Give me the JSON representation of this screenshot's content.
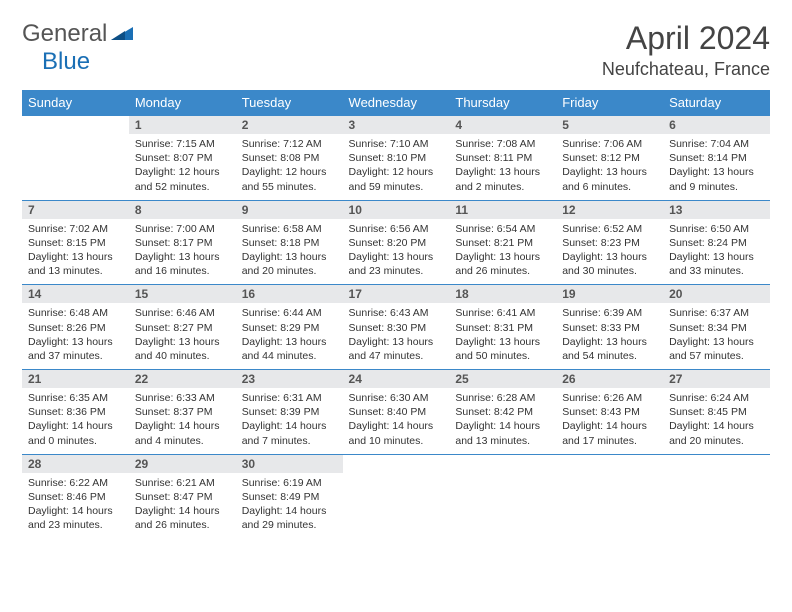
{
  "logo": {
    "general": "General",
    "blue": "Blue"
  },
  "title": "April 2024",
  "location": "Neufchateau, France",
  "colors": {
    "header_bg": "#3b88c9",
    "header_text": "#ffffff",
    "daynum_bg": "#e7e8ea",
    "rule": "#3b88c9",
    "logo_gray": "#555555",
    "logo_blue": "#1a6fb5"
  },
  "weekdays": [
    "Sunday",
    "Monday",
    "Tuesday",
    "Wednesday",
    "Thursday",
    "Friday",
    "Saturday"
  ],
  "weeks": [
    [
      null,
      {
        "n": "1",
        "sr": "Sunrise: 7:15 AM",
        "ss": "Sunset: 8:07 PM",
        "d1": "Daylight: 12 hours",
        "d2": "and 52 minutes."
      },
      {
        "n": "2",
        "sr": "Sunrise: 7:12 AM",
        "ss": "Sunset: 8:08 PM",
        "d1": "Daylight: 12 hours",
        "d2": "and 55 minutes."
      },
      {
        "n": "3",
        "sr": "Sunrise: 7:10 AM",
        "ss": "Sunset: 8:10 PM",
        "d1": "Daylight: 12 hours",
        "d2": "and 59 minutes."
      },
      {
        "n": "4",
        "sr": "Sunrise: 7:08 AM",
        "ss": "Sunset: 8:11 PM",
        "d1": "Daylight: 13 hours",
        "d2": "and 2 minutes."
      },
      {
        "n": "5",
        "sr": "Sunrise: 7:06 AM",
        "ss": "Sunset: 8:12 PM",
        "d1": "Daylight: 13 hours",
        "d2": "and 6 minutes."
      },
      {
        "n": "6",
        "sr": "Sunrise: 7:04 AM",
        "ss": "Sunset: 8:14 PM",
        "d1": "Daylight: 13 hours",
        "d2": "and 9 minutes."
      }
    ],
    [
      {
        "n": "7",
        "sr": "Sunrise: 7:02 AM",
        "ss": "Sunset: 8:15 PM",
        "d1": "Daylight: 13 hours",
        "d2": "and 13 minutes."
      },
      {
        "n": "8",
        "sr": "Sunrise: 7:00 AM",
        "ss": "Sunset: 8:17 PM",
        "d1": "Daylight: 13 hours",
        "d2": "and 16 minutes."
      },
      {
        "n": "9",
        "sr": "Sunrise: 6:58 AM",
        "ss": "Sunset: 8:18 PM",
        "d1": "Daylight: 13 hours",
        "d2": "and 20 minutes."
      },
      {
        "n": "10",
        "sr": "Sunrise: 6:56 AM",
        "ss": "Sunset: 8:20 PM",
        "d1": "Daylight: 13 hours",
        "d2": "and 23 minutes."
      },
      {
        "n": "11",
        "sr": "Sunrise: 6:54 AM",
        "ss": "Sunset: 8:21 PM",
        "d1": "Daylight: 13 hours",
        "d2": "and 26 minutes."
      },
      {
        "n": "12",
        "sr": "Sunrise: 6:52 AM",
        "ss": "Sunset: 8:23 PM",
        "d1": "Daylight: 13 hours",
        "d2": "and 30 minutes."
      },
      {
        "n": "13",
        "sr": "Sunrise: 6:50 AM",
        "ss": "Sunset: 8:24 PM",
        "d1": "Daylight: 13 hours",
        "d2": "and 33 minutes."
      }
    ],
    [
      {
        "n": "14",
        "sr": "Sunrise: 6:48 AM",
        "ss": "Sunset: 8:26 PM",
        "d1": "Daylight: 13 hours",
        "d2": "and 37 minutes."
      },
      {
        "n": "15",
        "sr": "Sunrise: 6:46 AM",
        "ss": "Sunset: 8:27 PM",
        "d1": "Daylight: 13 hours",
        "d2": "and 40 minutes."
      },
      {
        "n": "16",
        "sr": "Sunrise: 6:44 AM",
        "ss": "Sunset: 8:29 PM",
        "d1": "Daylight: 13 hours",
        "d2": "and 44 minutes."
      },
      {
        "n": "17",
        "sr": "Sunrise: 6:43 AM",
        "ss": "Sunset: 8:30 PM",
        "d1": "Daylight: 13 hours",
        "d2": "and 47 minutes."
      },
      {
        "n": "18",
        "sr": "Sunrise: 6:41 AM",
        "ss": "Sunset: 8:31 PM",
        "d1": "Daylight: 13 hours",
        "d2": "and 50 minutes."
      },
      {
        "n": "19",
        "sr": "Sunrise: 6:39 AM",
        "ss": "Sunset: 8:33 PM",
        "d1": "Daylight: 13 hours",
        "d2": "and 54 minutes."
      },
      {
        "n": "20",
        "sr": "Sunrise: 6:37 AM",
        "ss": "Sunset: 8:34 PM",
        "d1": "Daylight: 13 hours",
        "d2": "and 57 minutes."
      }
    ],
    [
      {
        "n": "21",
        "sr": "Sunrise: 6:35 AM",
        "ss": "Sunset: 8:36 PM",
        "d1": "Daylight: 14 hours",
        "d2": "and 0 minutes."
      },
      {
        "n": "22",
        "sr": "Sunrise: 6:33 AM",
        "ss": "Sunset: 8:37 PM",
        "d1": "Daylight: 14 hours",
        "d2": "and 4 minutes."
      },
      {
        "n": "23",
        "sr": "Sunrise: 6:31 AM",
        "ss": "Sunset: 8:39 PM",
        "d1": "Daylight: 14 hours",
        "d2": "and 7 minutes."
      },
      {
        "n": "24",
        "sr": "Sunrise: 6:30 AM",
        "ss": "Sunset: 8:40 PM",
        "d1": "Daylight: 14 hours",
        "d2": "and 10 minutes."
      },
      {
        "n": "25",
        "sr": "Sunrise: 6:28 AM",
        "ss": "Sunset: 8:42 PM",
        "d1": "Daylight: 14 hours",
        "d2": "and 13 minutes."
      },
      {
        "n": "26",
        "sr": "Sunrise: 6:26 AM",
        "ss": "Sunset: 8:43 PM",
        "d1": "Daylight: 14 hours",
        "d2": "and 17 minutes."
      },
      {
        "n": "27",
        "sr": "Sunrise: 6:24 AM",
        "ss": "Sunset: 8:45 PM",
        "d1": "Daylight: 14 hours",
        "d2": "and 20 minutes."
      }
    ],
    [
      {
        "n": "28",
        "sr": "Sunrise: 6:22 AM",
        "ss": "Sunset: 8:46 PM",
        "d1": "Daylight: 14 hours",
        "d2": "and 23 minutes."
      },
      {
        "n": "29",
        "sr": "Sunrise: 6:21 AM",
        "ss": "Sunset: 8:47 PM",
        "d1": "Daylight: 14 hours",
        "d2": "and 26 minutes."
      },
      {
        "n": "30",
        "sr": "Sunrise: 6:19 AM",
        "ss": "Sunset: 8:49 PM",
        "d1": "Daylight: 14 hours",
        "d2": "and 29 minutes."
      },
      null,
      null,
      null,
      null
    ]
  ]
}
